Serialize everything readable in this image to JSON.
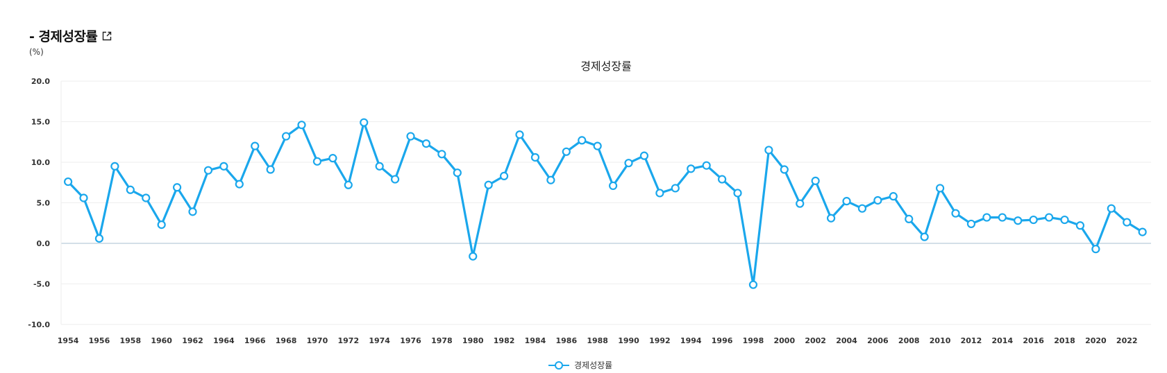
{
  "header": {
    "title": "- 경제성장률",
    "external_icon": "external-link-icon"
  },
  "unit_label": "(%)",
  "colors": {
    "series": "#1aa7ec",
    "grid": "#eeeeee",
    "zero_line": "#b9ccd9"
  },
  "chart_data": {
    "type": "line",
    "title": "경제성장률",
    "xlabel": "",
    "ylabel": "(%)",
    "ylim": [
      -10,
      20
    ],
    "y_ticks": [
      "20.0",
      "15.0",
      "10.0",
      "5.0",
      "0.0",
      "-5.0",
      "-10.0"
    ],
    "x_ticks": [
      "1954",
      "1956",
      "1958",
      "1960",
      "1962",
      "1964",
      "1966",
      "1968",
      "1970",
      "1972",
      "1974",
      "1976",
      "1978",
      "1980",
      "1982",
      "1984",
      "1986",
      "1988",
      "1990",
      "1992",
      "1994",
      "1996",
      "1998",
      "2000",
      "2002",
      "2004",
      "2006",
      "2008",
      "2010",
      "2012",
      "2014",
      "2016",
      "2018",
      "2020",
      "2022"
    ],
    "grid": true,
    "legend_position": "bottom-center",
    "x": [
      1954,
      1955,
      1956,
      1957,
      1958,
      1959,
      1960,
      1961,
      1962,
      1963,
      1964,
      1965,
      1966,
      1967,
      1968,
      1969,
      1970,
      1971,
      1972,
      1973,
      1974,
      1975,
      1976,
      1977,
      1978,
      1979,
      1980,
      1981,
      1982,
      1983,
      1984,
      1985,
      1986,
      1987,
      1988,
      1989,
      1990,
      1991,
      1992,
      1993,
      1994,
      1995,
      1996,
      1997,
      1998,
      1999,
      2000,
      2001,
      2002,
      2003,
      2004,
      2005,
      2006,
      2007,
      2008,
      2009,
      2010,
      2011,
      2012,
      2013,
      2014,
      2015,
      2016,
      2017,
      2018,
      2019,
      2020,
      2021,
      2022,
      2023
    ],
    "series": [
      {
        "name": "경제성장률",
        "values": [
          7.6,
          5.6,
          0.6,
          9.5,
          6.6,
          5.6,
          2.3,
          6.9,
          3.9,
          9.0,
          9.5,
          7.3,
          12.0,
          9.1,
          13.2,
          14.6,
          10.1,
          10.5,
          7.2,
          14.9,
          9.5,
          7.9,
          13.2,
          12.3,
          11.0,
          8.7,
          -1.6,
          7.2,
          8.3,
          13.4,
          10.6,
          7.8,
          11.3,
          12.7,
          12.0,
          7.1,
          9.9,
          10.8,
          6.2,
          6.8,
          9.2,
          9.6,
          7.9,
          6.2,
          -5.1,
          11.5,
          9.1,
          4.9,
          7.7,
          3.1,
          5.2,
          4.3,
          5.3,
          5.8,
          3.0,
          0.8,
          6.8,
          3.7,
          2.4,
          3.2,
          3.2,
          2.8,
          2.9,
          3.2,
          2.9,
          2.2,
          -0.7,
          4.3,
          2.6,
          1.4
        ]
      }
    ]
  }
}
